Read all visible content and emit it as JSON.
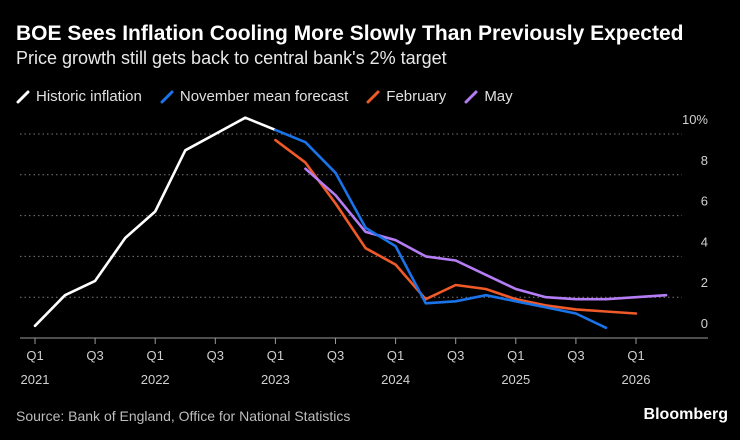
{
  "title": "BOE Sees Inflation Cooling More Slowly Than Previously Expected",
  "subtitle": "Price growth still gets back to central bank's 2% target",
  "source": "Source: Bank of England, Office for National Statistics",
  "brand": "Bloomberg",
  "chart_data": {
    "type": "line",
    "title": "BOE Sees Inflation Cooling More Slowly Than Previously Expected",
    "subtitle": "Price growth still gets back to central bank's 2% target",
    "xlabel": "",
    "ylabel": "",
    "ylim": [
      0,
      10
    ],
    "yticks": [
      0,
      2,
      4,
      6,
      8,
      10
    ],
    "ytick_labels": [
      "0",
      "2",
      "4",
      "6",
      "8",
      "10%"
    ],
    "grid": true,
    "x_unit": "quarter index (0 = Q1 2021)",
    "xticks": [
      {
        "x": 0,
        "quarter": "Q1",
        "year": "2021"
      },
      {
        "x": 2,
        "quarter": "Q3",
        "year": ""
      },
      {
        "x": 4,
        "quarter": "Q1",
        "year": "2022"
      },
      {
        "x": 6,
        "quarter": "Q3",
        "year": ""
      },
      {
        "x": 8,
        "quarter": "Q1",
        "year": "2023"
      },
      {
        "x": 10,
        "quarter": "Q3",
        "year": ""
      },
      {
        "x": 12,
        "quarter": "Q1",
        "year": "2024"
      },
      {
        "x": 14,
        "quarter": "Q3",
        "year": ""
      },
      {
        "x": 16,
        "quarter": "Q1",
        "year": "2025"
      },
      {
        "x": 18,
        "quarter": "Q3",
        "year": ""
      },
      {
        "x": 20,
        "quarter": "Q1",
        "year": "2026"
      }
    ],
    "legend_position": "top-left",
    "series": [
      {
        "name": "Historic inflation",
        "color": "#ffffff",
        "x": [
          0,
          1,
          2,
          3,
          4,
          5,
          6,
          7,
          8
        ],
        "values": [
          0.6,
          2.1,
          2.8,
          4.9,
          6.2,
          9.2,
          10.0,
          10.8,
          10.2
        ]
      },
      {
        "name": "November mean forecast",
        "color": "#1a73e8",
        "x": [
          8,
          9,
          10,
          11,
          12,
          13,
          14,
          15,
          16,
          17,
          18,
          19
        ],
        "values": [
          10.2,
          9.6,
          8.1,
          5.4,
          4.5,
          1.7,
          1.8,
          2.1,
          1.8,
          1.5,
          1.2,
          0.5
        ]
      },
      {
        "name": "February",
        "color": "#f05a28",
        "x": [
          8,
          9,
          10,
          11,
          12,
          13,
          14,
          15,
          16,
          17,
          18,
          19,
          20
        ],
        "values": [
          9.7,
          8.6,
          6.6,
          4.4,
          3.6,
          1.9,
          2.6,
          2.4,
          1.9,
          1.6,
          1.4,
          1.3,
          1.2
        ]
      },
      {
        "name": "May",
        "color": "#b57df5",
        "x": [
          9,
          10,
          11,
          12,
          13,
          14,
          15,
          16,
          17,
          18,
          19,
          20,
          21
        ],
        "values": [
          8.3,
          7.0,
          5.2,
          4.8,
          4.0,
          3.8,
          3.1,
          2.4,
          2.0,
          1.9,
          1.9,
          2.0,
          2.1
        ]
      }
    ]
  }
}
